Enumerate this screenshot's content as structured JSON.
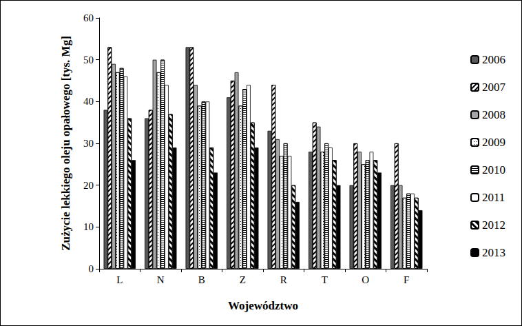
{
  "chart_data": {
    "type": "bar",
    "x_label": "Województwo",
    "y_label": "Zużycie lekkiego oleju opałowego [tys. Mg]",
    "categories": [
      "L",
      "N",
      "B",
      "Z",
      "R",
      "T",
      "O",
      "F"
    ],
    "series": [
      {
        "name": "2006",
        "color": "#595959",
        "values": [
          38,
          36,
          53,
          41,
          33,
          28,
          20,
          20
        ]
      },
      {
        "name": "2007",
        "color": "#ffffff",
        "values": [
          53,
          38,
          53,
          45,
          44,
          35,
          30,
          30
        ]
      },
      {
        "name": "2008",
        "color": "#a6a6a6",
        "values": [
          49,
          50,
          44,
          47,
          31,
          34,
          28,
          20
        ]
      },
      {
        "name": "2009",
        "color": "#ffffff",
        "values": [
          47,
          47,
          39,
          39,
          27,
          28,
          25,
          17
        ]
      },
      {
        "name": "2010",
        "color": "#ffffff",
        "values": [
          48,
          50,
          40,
          43,
          30,
          30,
          26,
          18
        ]
      },
      {
        "name": "2011",
        "color": "#ffffff",
        "values": [
          46,
          44,
          40,
          44,
          27,
          29,
          28,
          18
        ]
      },
      {
        "name": "2012",
        "color": "#ffffff",
        "values": [
          36,
          37,
          29,
          35,
          20,
          26,
          26,
          17
        ]
      },
      {
        "name": "2013",
        "color": "#000000",
        "values": [
          26,
          29,
          23,
          29,
          16,
          20,
          23,
          14
        ]
      }
    ],
    "ylim": [
      0,
      60
    ],
    "yticks": [
      0,
      10,
      20,
      30,
      40,
      50,
      60
    ],
    "grid": false,
    "legend": "right"
  }
}
